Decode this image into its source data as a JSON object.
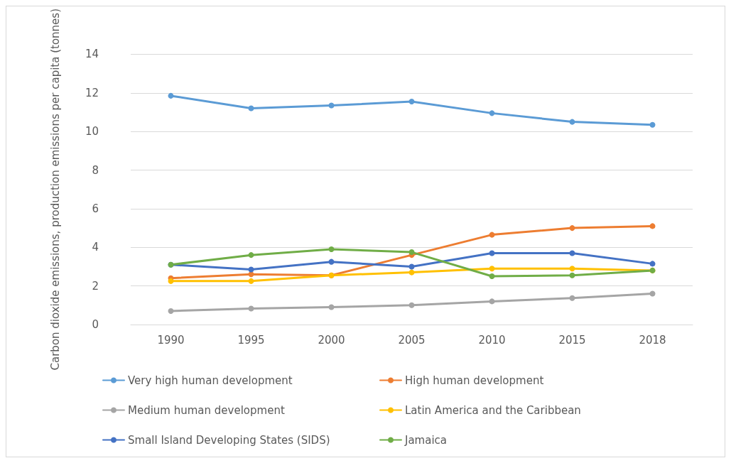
{
  "chart_data": {
    "type": "line",
    "ylabel": "Carbon dioxide emissions, production emissions per capita (tonnes)",
    "categories": [
      "1990",
      "1995",
      "2000",
      "2005",
      "2010",
      "2015",
      "2018"
    ],
    "series": [
      {
        "name": "Very high human development",
        "color": "#5b9bd5",
        "values": [
          11.85,
          11.2,
          11.35,
          11.55,
          10.95,
          10.5,
          10.35
        ]
      },
      {
        "name": "High human development",
        "color": "#ed7d31",
        "values": [
          2.4,
          2.6,
          2.55,
          3.6,
          4.65,
          5.0,
          5.1
        ]
      },
      {
        "name": "Medium human development",
        "color": "#a5a5a5",
        "values": [
          0.7,
          0.83,
          0.9,
          1.0,
          1.2,
          1.37,
          1.6
        ]
      },
      {
        "name": "Latin America and the Caribbean",
        "color": "#ffc000",
        "values": [
          2.25,
          2.25,
          2.55,
          2.7,
          2.9,
          2.9,
          2.8
        ]
      },
      {
        "name": "Small Island Developing States (SIDS)",
        "color": "#4472c4",
        "values": [
          3.1,
          2.85,
          3.25,
          3.0,
          3.7,
          3.7,
          3.15
        ]
      },
      {
        "name": "Jamaica",
        "color": "#70ad47",
        "values": [
          3.1,
          3.6,
          3.9,
          3.75,
          2.5,
          2.55,
          2.8
        ]
      }
    ],
    "ylim": [
      0,
      14
    ],
    "yticks": [
      0,
      2,
      4,
      6,
      8,
      10,
      12,
      14
    ],
    "grid": "y",
    "legend": "bottom",
    "marker": "circle",
    "line_style": "solid"
  }
}
